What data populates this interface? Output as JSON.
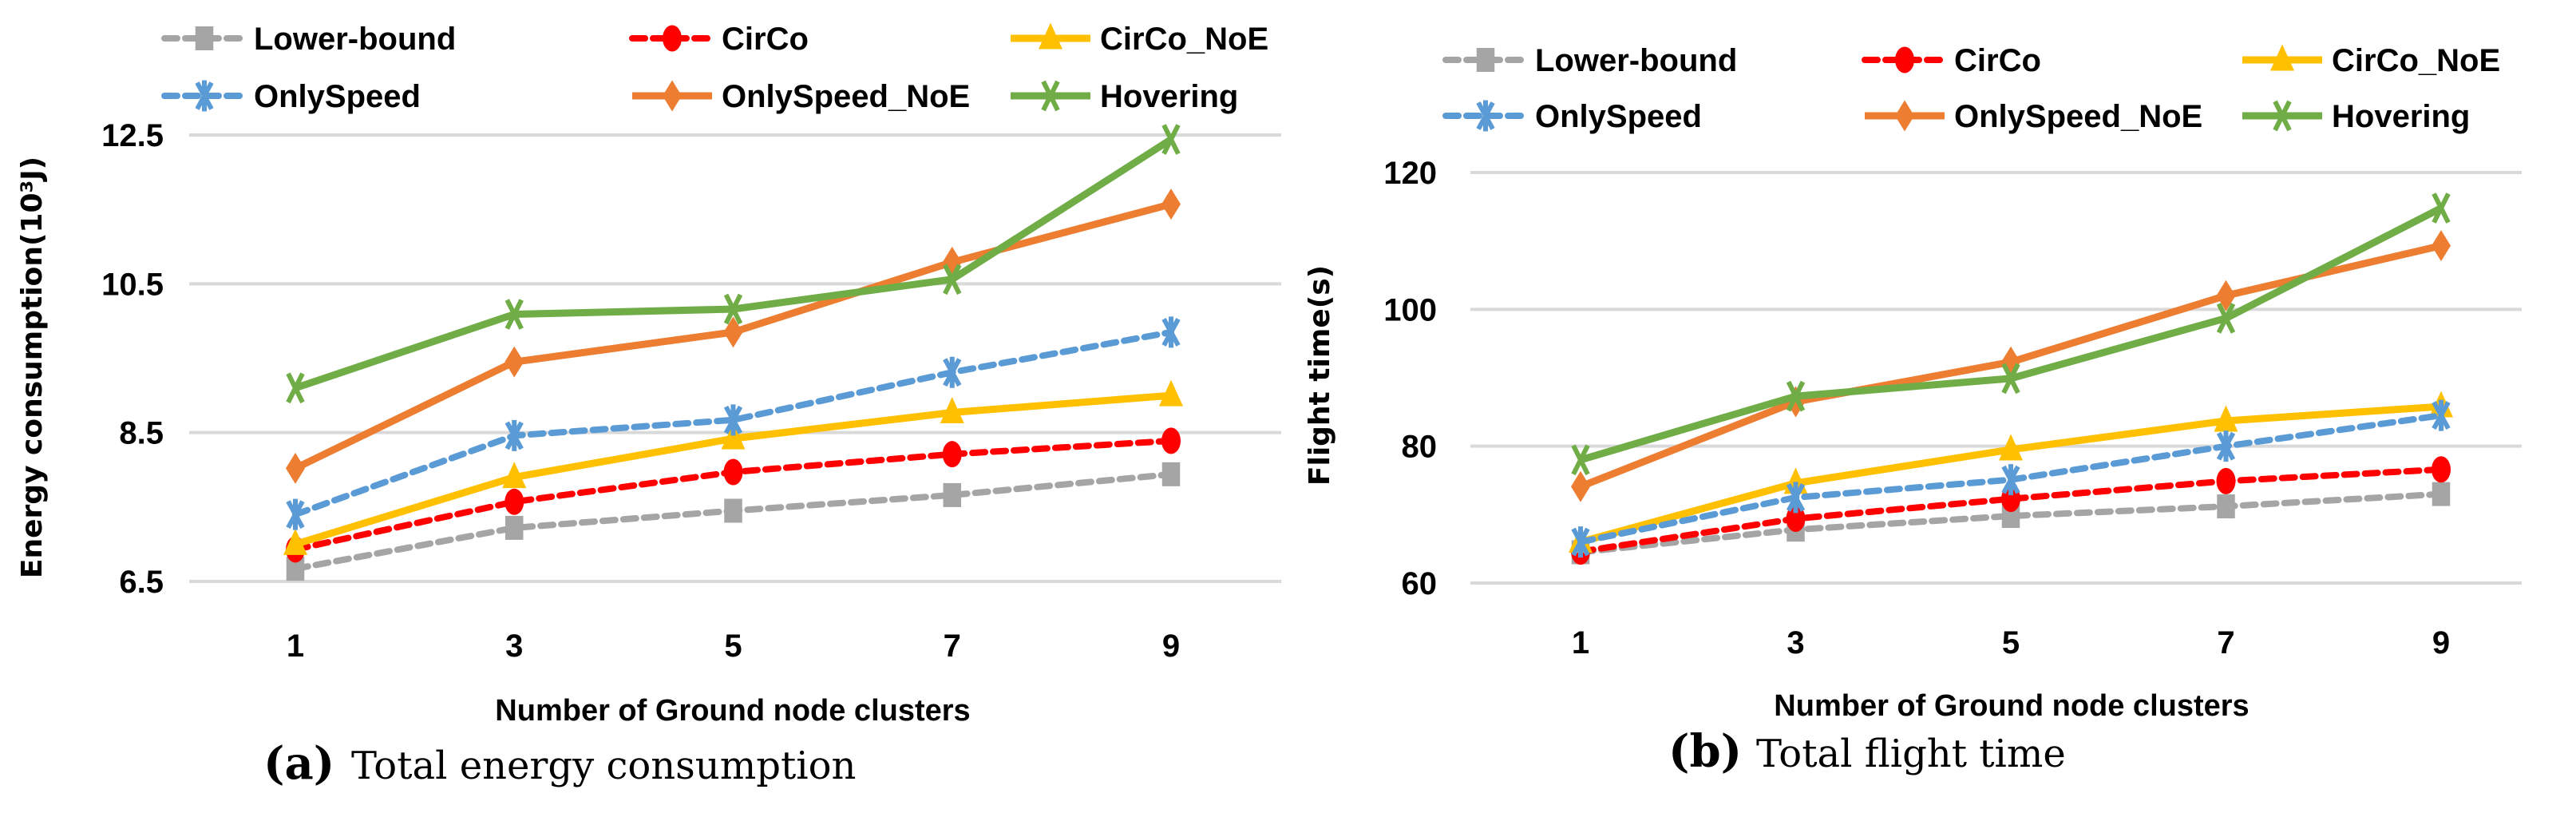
{
  "chart_data": [
    {
      "type": "line",
      "caption_letter": "(a)",
      "caption": "Total energy consumption",
      "xlabel": "Number of Ground node clusters",
      "ylabel": "Energy consumption(10³J)",
      "x": [
        1,
        3,
        5,
        7,
        9
      ],
      "xtick_labels": [
        "1",
        "3",
        "5",
        "7",
        "9"
      ],
      "ytick_labels": [
        "6.5",
        "8.5",
        "10.5",
        "12.5"
      ],
      "yticks": [
        6.5,
        8.5,
        10.5,
        12.5
      ],
      "ylim": [
        6.5,
        12.5
      ],
      "grid": true,
      "legend_position": "top",
      "series": [
        {
          "name": "Lower-bound",
          "values": [
            6.67,
            7.22,
            7.45,
            7.66,
            7.94
          ]
        },
        {
          "name": "CirCo",
          "values": [
            6.93,
            7.57,
            7.97,
            8.21,
            8.39
          ]
        },
        {
          "name": "CirCo_NoE",
          "values": [
            7.0,
            7.9,
            8.42,
            8.77,
            9.0
          ]
        },
        {
          "name": "OnlySpeed",
          "values": [
            7.4,
            8.46,
            8.67,
            9.31,
            9.85
          ]
        },
        {
          "name": "OnlySpeed_NoE",
          "values": [
            8.02,
            9.45,
            9.85,
            10.79,
            11.57
          ]
        },
        {
          "name": "Hovering",
          "values": [
            9.1,
            10.09,
            10.16,
            10.56,
            12.44
          ]
        }
      ]
    },
    {
      "type": "line",
      "caption_letter": "(b)",
      "caption": "Total flight time",
      "xlabel": "Number of Ground node clusters",
      "ylabel": "Flight time(s)",
      "x": [
        1,
        3,
        5,
        7,
        9
      ],
      "xtick_labels": [
        "1",
        "3",
        "5",
        "7",
        "9"
      ],
      "ytick_labels": [
        "60",
        "80",
        "100",
        "120"
      ],
      "yticks": [
        60,
        80,
        100,
        120
      ],
      "ylim": [
        60,
        120
      ],
      "grid": true,
      "legend_position": "top",
      "series": [
        {
          "name": "Lower-bound",
          "values": [
            64.5,
            67.8,
            69.8,
            71.2,
            73.0
          ]
        },
        {
          "name": "CirCo",
          "values": [
            64.6,
            69.4,
            72.3,
            74.9,
            76.6
          ]
        },
        {
          "name": "CirCo_NoE",
          "values": [
            66.0,
            74.6,
            79.5,
            83.7,
            85.8
          ]
        },
        {
          "name": "OnlySpeed",
          "values": [
            66.0,
            72.5,
            75.1,
            80.0,
            84.5
          ]
        },
        {
          "name": "OnlySpeed_NoE",
          "values": [
            74.1,
            86.5,
            92.3,
            102.0,
            109.3
          ]
        },
        {
          "name": "Hovering",
          "values": [
            78.0,
            87.3,
            89.9,
            98.7,
            114.8
          ]
        }
      ]
    }
  ],
  "styles": {
    "Lower-bound": {
      "color": "#a5a5a5",
      "dash": true,
      "marker": "square"
    },
    "CirCo": {
      "color": "#ff0000",
      "dash": true,
      "marker": "circle"
    },
    "CirCo_NoE": {
      "color": "#ffc000",
      "dash": false,
      "marker": "triangle"
    },
    "OnlySpeed": {
      "color": "#5b9bd5",
      "dash": true,
      "marker": "asterisk"
    },
    "OnlySpeed_NoE": {
      "color": "#ed7d31",
      "dash": false,
      "marker": "diamond"
    },
    "Hovering": {
      "color": "#70ad47",
      "dash": false,
      "marker": "x"
    },
    "grid_color": "#d9d9d9"
  }
}
